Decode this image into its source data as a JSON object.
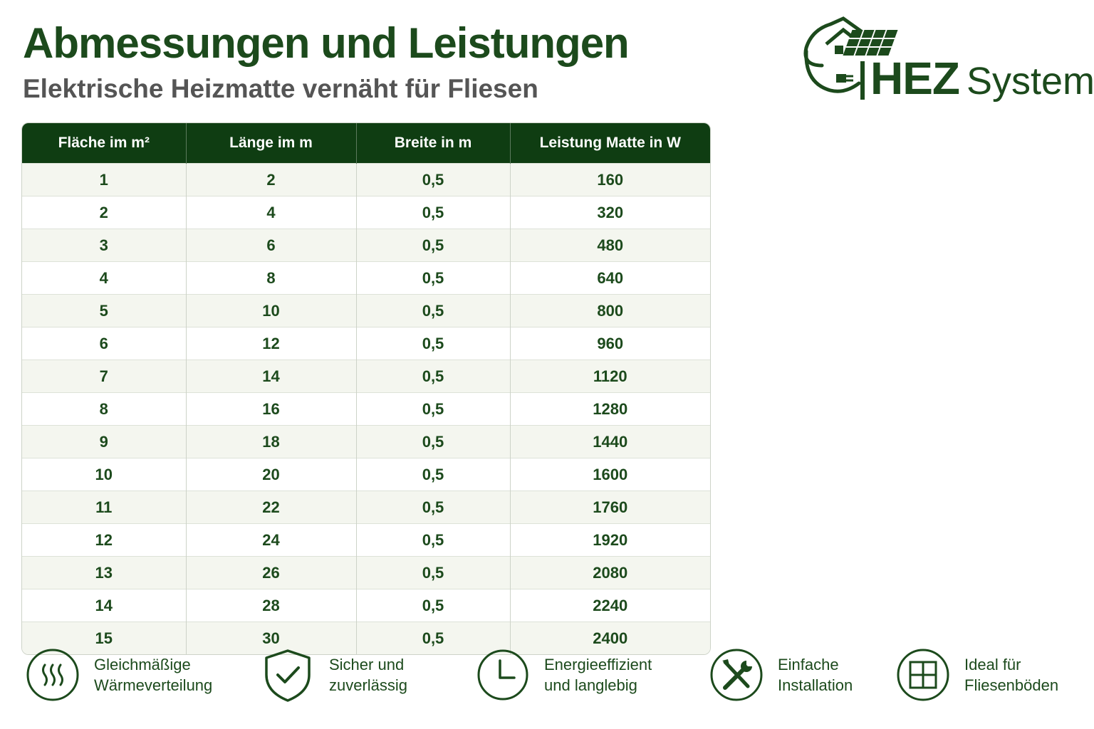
{
  "header": {
    "title": "Abmessungen und Leistungen",
    "subtitle": "Elektrische Heizmatte vernäht für Fliesen"
  },
  "logo": {
    "brand": "HEZ",
    "suffix": "Systeme",
    "icon": "house-solar-plug-icon"
  },
  "table": {
    "columns": [
      "Fläche im m²",
      "Länge im m",
      "Breite in m",
      "Leistung Matte in W"
    ],
    "rows": [
      [
        "1",
        "2",
        "0,5",
        "160"
      ],
      [
        "2",
        "4",
        "0,5",
        "320"
      ],
      [
        "3",
        "6",
        "0,5",
        "480"
      ],
      [
        "4",
        "8",
        "0,5",
        "640"
      ],
      [
        "5",
        "10",
        "0,5",
        "800"
      ],
      [
        "6",
        "12",
        "0,5",
        "960"
      ],
      [
        "7",
        "14",
        "0,5",
        "1120"
      ],
      [
        "8",
        "16",
        "0,5",
        "1280"
      ],
      [
        "9",
        "18",
        "0,5",
        "1440"
      ],
      [
        "10",
        "20",
        "0,5",
        "1600"
      ],
      [
        "11",
        "22",
        "0,5",
        "1760"
      ],
      [
        "12",
        "24",
        "0,5",
        "1920"
      ],
      [
        "13",
        "26",
        "0,5",
        "2080"
      ],
      [
        "14",
        "28",
        "0,5",
        "2240"
      ],
      [
        "15",
        "30",
        "0,5",
        "2400"
      ]
    ]
  },
  "features": [
    {
      "icon": "heat-waves-icon",
      "line1": "Gleichmäßige",
      "line2": "Wärmeverteilung"
    },
    {
      "icon": "shield-check-icon",
      "line1": "Sicher und",
      "line2": "zuverlässig"
    },
    {
      "icon": "clock-icon",
      "line1": "Energieeffizient",
      "line2": "und langlebig"
    },
    {
      "icon": "tools-icon",
      "line1": "Einfache",
      "line2": "Installation"
    },
    {
      "icon": "tile-grid-icon",
      "line1": "Ideal für",
      "line2": "Fliesenböden"
    }
  ],
  "colors": {
    "brand_green": "#1c4a1c",
    "header_green": "#0f3d12",
    "row_tint": "#f4f6ef"
  }
}
